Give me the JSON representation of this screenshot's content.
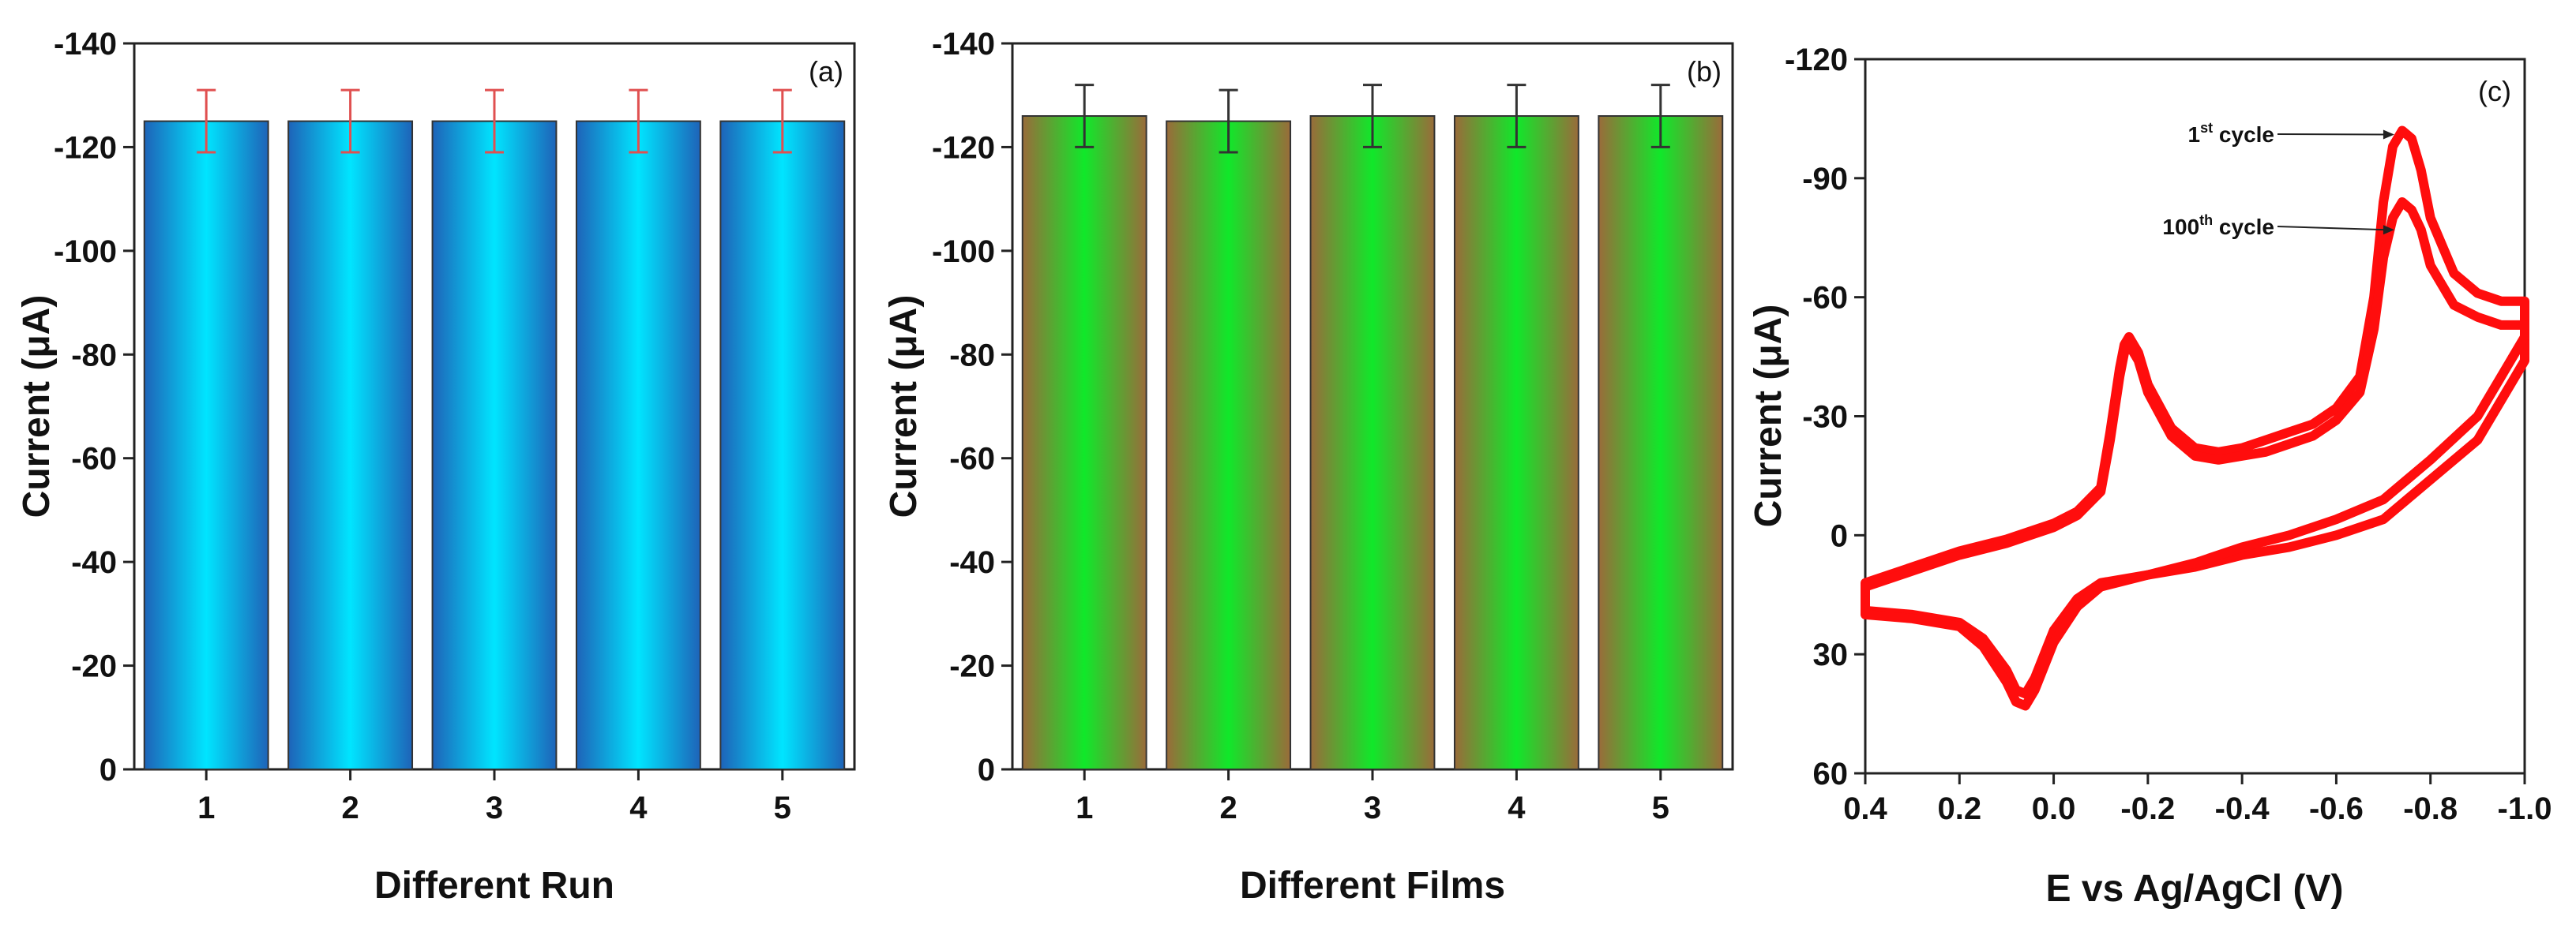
{
  "colors": {
    "bar_a_edge": "#1e63b8",
    "bar_a_center": "#00e5ff",
    "bar_b_edge": "#9a6b3a",
    "bar_b_center": "#10e82a",
    "errorbar_a": "#e05050",
    "errorbar_b": "#333333",
    "cv_curve": "#ff0d0d",
    "axis": "#222222"
  },
  "chart_data": [
    {
      "type": "bar",
      "panel_tag": "(a)",
      "xlabel": "Different Run",
      "ylabel": "Current (μA)",
      "categories": [
        "1",
        "2",
        "3",
        "4",
        "5"
      ],
      "values": [
        -125,
        -125,
        -125,
        -125,
        -125
      ],
      "errors": [
        6,
        6,
        6,
        6,
        6
      ],
      "ylim": [
        0,
        -140
      ],
      "yticks": [
        0,
        -20,
        -40,
        -60,
        -80,
        -100,
        -120,
        -140
      ],
      "ytick_labels": [
        "0",
        "-20",
        "-40",
        "-60",
        "-80",
        "-100",
        "-120",
        "-140"
      ],
      "grid": false,
      "legend": "none"
    },
    {
      "type": "bar",
      "panel_tag": "(b)",
      "xlabel": "Different Films",
      "ylabel": "Current (μA)",
      "categories": [
        "1",
        "2",
        "3",
        "4",
        "5"
      ],
      "values": [
        -126,
        -125,
        -126,
        -126,
        -126
      ],
      "errors": [
        6,
        6,
        6,
        6,
        6
      ],
      "ylim": [
        0,
        -140
      ],
      "yticks": [
        0,
        -20,
        -40,
        -60,
        -80,
        -100,
        -120,
        -140
      ],
      "ytick_labels": [
        "0",
        "-20",
        "-40",
        "-60",
        "-80",
        "-100",
        "-120",
        "-140"
      ],
      "grid": false,
      "legend": "none"
    },
    {
      "type": "line",
      "panel_tag": "(c)",
      "xlabel": "E vs Ag/AgCl (V)",
      "ylabel": "Current (μA)",
      "xlim": [
        0.4,
        -1.0
      ],
      "xticks": [
        0.4,
        0.2,
        0.0,
        -0.2,
        -0.4,
        -0.6,
        -0.8,
        -1.0
      ],
      "xtick_labels": [
        "0.4",
        "0.2",
        "0.0",
        "-0.2",
        "-0.4",
        "-0.6",
        "-0.8",
        "-1.0"
      ],
      "ylim": [
        60,
        -120
      ],
      "yticks": [
        60,
        30,
        0,
        -30,
        -60,
        -90,
        -120
      ],
      "ytick_labels": [
        "60",
        "30",
        "0",
        "-30",
        "-60",
        "-90",
        "-120"
      ],
      "grid": false,
      "annotations": {
        "first_cycle": {
          "base": "1",
          "sup": "st",
          "rest": " cycle",
          "target": [
            -0.74,
            -101
          ]
        },
        "last_cycle": {
          "base": "100",
          "sup": "th",
          "rest": " cycle",
          "target": [
            -0.74,
            -77
          ]
        }
      },
      "series": [
        {
          "label_ref": "1st cycle",
          "x": [
            -1.0,
            -0.95,
            -0.9,
            -0.85,
            -0.8,
            -0.78,
            -0.76,
            -0.74,
            -0.72,
            -0.7,
            -0.68,
            -0.65,
            -0.6,
            -0.55,
            -0.5,
            -0.45,
            -0.4,
            -0.35,
            -0.3,
            -0.25,
            -0.2,
            -0.18,
            -0.16,
            -0.15,
            -0.14,
            -0.12,
            -0.1,
            -0.05,
            0.0,
            0.05,
            0.1,
            0.2,
            0.3,
            0.4,
            0.4,
            0.3,
            0.2,
            0.15,
            0.1,
            0.08,
            0.06,
            0.04,
            0.0,
            -0.05,
            -0.1,
            -0.2,
            -0.3,
            -0.4,
            -0.5,
            -0.6,
            -0.7,
            -0.8,
            -0.9,
            -1.0
          ],
          "y": [
            -59,
            -59,
            -61,
            -66,
            -80,
            -92,
            -100,
            -102,
            -98,
            -84,
            -60,
            -40,
            -32,
            -28,
            -26,
            -24,
            -22,
            -21,
            -22,
            -27,
            -38,
            -46,
            -50,
            -48,
            -42,
            -26,
            -12,
            -6,
            -3,
            -1,
            1,
            4,
            8,
            12,
            19,
            20,
            22,
            26,
            34,
            39,
            40,
            36,
            24,
            16,
            12,
            10,
            8,
            5,
            3,
            0,
            -4,
            -14,
            -24,
            -44
          ]
        },
        {
          "label_ref": "100th cycle",
          "x": [
            -1.0,
            -0.95,
            -0.9,
            -0.85,
            -0.8,
            -0.78,
            -0.76,
            -0.74,
            -0.72,
            -0.7,
            -0.68,
            -0.65,
            -0.6,
            -0.55,
            -0.5,
            -0.45,
            -0.4,
            -0.35,
            -0.3,
            -0.25,
            -0.2,
            -0.18,
            -0.16,
            -0.15,
            -0.14,
            -0.12,
            -0.1,
            -0.05,
            0.0,
            0.05,
            0.1,
            0.2,
            0.3,
            0.4,
            0.4,
            0.3,
            0.2,
            0.15,
            0.1,
            0.08,
            0.06,
            0.04,
            0.0,
            -0.05,
            -0.1,
            -0.2,
            -0.3,
            -0.4,
            -0.5,
            -0.6,
            -0.7,
            -0.8,
            -0.9,
            -1.0
          ],
          "y": [
            -53,
            -53,
            -55,
            -58,
            -68,
            -77,
            -82,
            -84,
            -80,
            -70,
            -52,
            -36,
            -29,
            -25,
            -23,
            -21,
            -20,
            -19,
            -20,
            -25,
            -36,
            -44,
            -48,
            -46,
            -40,
            -24,
            -11,
            -5,
            -2,
            0,
            2,
            5,
            9,
            13,
            20,
            21,
            23,
            28,
            37,
            42,
            43,
            39,
            27,
            18,
            13,
            10,
            7,
            3,
            0,
            -4,
            -9,
            -19,
            -30,
            -50
          ]
        }
      ]
    }
  ]
}
